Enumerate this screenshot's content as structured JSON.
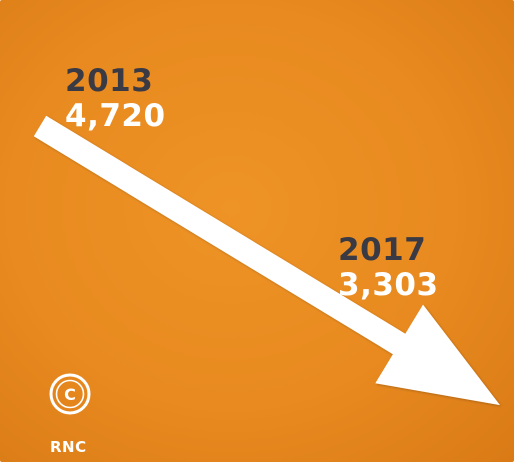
{
  "chart_data": {
    "type": "line",
    "title": "",
    "xlabel": "",
    "ylabel": "",
    "x": [
      "2013",
      "2017"
    ],
    "series": [
      {
        "values": [
          4720,
          3303
        ]
      }
    ],
    "data_labels": [
      {
        "year": "2013",
        "value": "4,720"
      },
      {
        "year": "2017",
        "value": "3,303"
      }
    ],
    "grid": false,
    "legend": "none"
  },
  "brand": {
    "logo_icon": "copyright-circle-icon",
    "logo_letter": "C",
    "name": "RNC"
  },
  "colors": {
    "background": "#e88a1f",
    "arrow": "#ffffff",
    "year_text": "#3a3a44",
    "value_text": "#ffffff"
  }
}
